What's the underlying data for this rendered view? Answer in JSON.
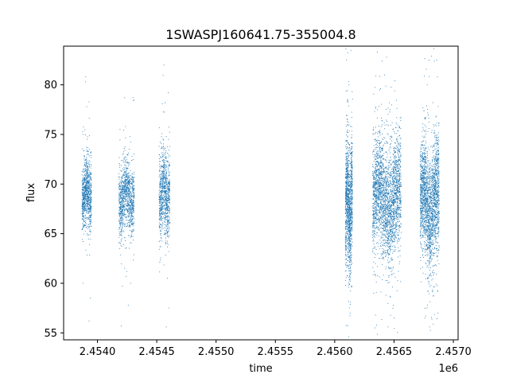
{
  "chart_data": {
    "type": "scatter",
    "title": "1SWASPJ160641.75-355004.8",
    "xlabel": "time",
    "ylabel": "flux",
    "x_offset_label": "1e6",
    "xlim": [
      2453715,
      2457040
    ],
    "ylim": [
      54.3,
      83.9
    ],
    "x_ticks": [
      2.454,
      2.4545,
      2.455,
      2.4555,
      2.456,
      2.4565,
      2.457
    ],
    "x_tick_labels": [
      "2.4540",
      "2.4545",
      "2.4550",
      "2.4555",
      "2.4560",
      "2.4565",
      "2.4570"
    ],
    "y_ticks": [
      55,
      60,
      65,
      70,
      75,
      80
    ],
    "y_tick_labels": [
      "55",
      "60",
      "65",
      "70",
      "75",
      "80"
    ],
    "grid": false,
    "marker_color": "#1f77b4",
    "clusters": [
      {
        "x_start": 2453870,
        "x_end": 2453950,
        "y_center": 69.2,
        "y_sd": 1.6,
        "n": 900,
        "outliers": [
          [
            2453900,
            80.3
          ],
          [
            2453930,
            56.2
          ],
          [
            2453880,
            60.0
          ],
          [
            2453940,
            58.5
          ],
          [
            2453910,
            77.8
          ]
        ]
      },
      {
        "x_start": 2454180,
        "x_end": 2454310,
        "y_center": 68.6,
        "y_sd": 1.7,
        "n": 1100,
        "outliers": [
          [
            2454200,
            55.7
          ],
          [
            2454230,
            78.7
          ],
          [
            2454310,
            78.5
          ],
          [
            2454260,
            57.8
          ],
          [
            2454190,
            75.5
          ],
          [
            2454280,
            60.0
          ]
        ]
      },
      {
        "x_start": 2454520,
        "x_end": 2454610,
        "y_center": 69.0,
        "y_sd": 2.1,
        "n": 900,
        "outliers": [
          [
            2454560,
            82.0
          ],
          [
            2454580,
            55.6
          ],
          [
            2454600,
            57.5
          ],
          [
            2454570,
            78.2
          ],
          [
            2454590,
            60.5
          ]
        ]
      },
      {
        "x_start": 2456090,
        "x_end": 2456150,
        "y_center": 67.6,
        "y_sd": 3.0,
        "n": 1300,
        "outliers": [
          [
            2456100,
            82.5
          ],
          [
            2456110,
            55.7
          ],
          [
            2456120,
            80.0
          ],
          [
            2456130,
            57.0
          ]
        ]
      },
      {
        "x_start": 2456320,
        "x_end": 2456560,
        "y_center": 68.6,
        "y_sd": 2.8,
        "n": 2600,
        "outliers": [
          [
            2456340,
            55.5
          ],
          [
            2456400,
            82.4
          ],
          [
            2456450,
            55.6
          ],
          [
            2456420,
            81.0
          ],
          [
            2456500,
            56.5
          ],
          [
            2456380,
            79.5
          ]
        ]
      },
      {
        "x_start": 2456720,
        "x_end": 2456880,
        "y_center": 68.1,
        "y_sd": 2.9,
        "n": 2200,
        "outliers": [
          [
            2456800,
            55.6
          ],
          [
            2456860,
            82.5
          ],
          [
            2456840,
            82.4
          ],
          [
            2456780,
            80.0
          ],
          [
            2456760,
            56.5
          ],
          [
            2456870,
            57.0
          ]
        ]
      }
    ]
  }
}
